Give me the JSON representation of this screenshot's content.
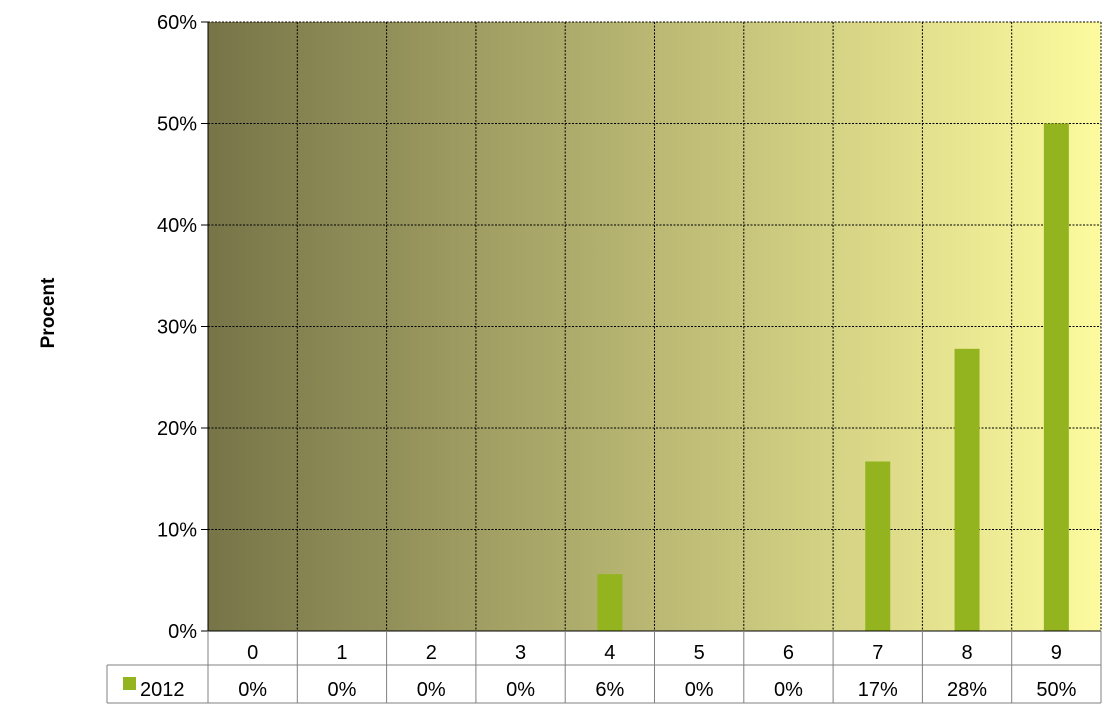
{
  "chart_data": {
    "type": "bar",
    "categories": [
      "0",
      "1",
      "2",
      "3",
      "4",
      "5",
      "6",
      "7",
      "8",
      "9"
    ],
    "series": [
      {
        "name": "2012",
        "values": [
          0,
          0,
          0,
          0,
          5.6,
          0,
          0,
          16.7,
          27.8,
          50.0
        ],
        "labels": [
          "0%",
          "0%",
          "0%",
          "0%",
          "6%",
          "0%",
          "0%",
          "17%",
          "28%",
          "50%"
        ],
        "color": "#93b41e"
      }
    ],
    "ylabel": "Procent",
    "xlabel": "",
    "ylim": [
      0,
      60
    ],
    "yticks": [
      0,
      10,
      20,
      30,
      40,
      50,
      60
    ],
    "ytick_labels": [
      "0%",
      "10%",
      "20%",
      "30%",
      "40%",
      "50%",
      "60%"
    ],
    "grid": true,
    "legend": "data-table-left",
    "background_gradient": [
      "#777548",
      "#fdfb9e"
    ]
  }
}
